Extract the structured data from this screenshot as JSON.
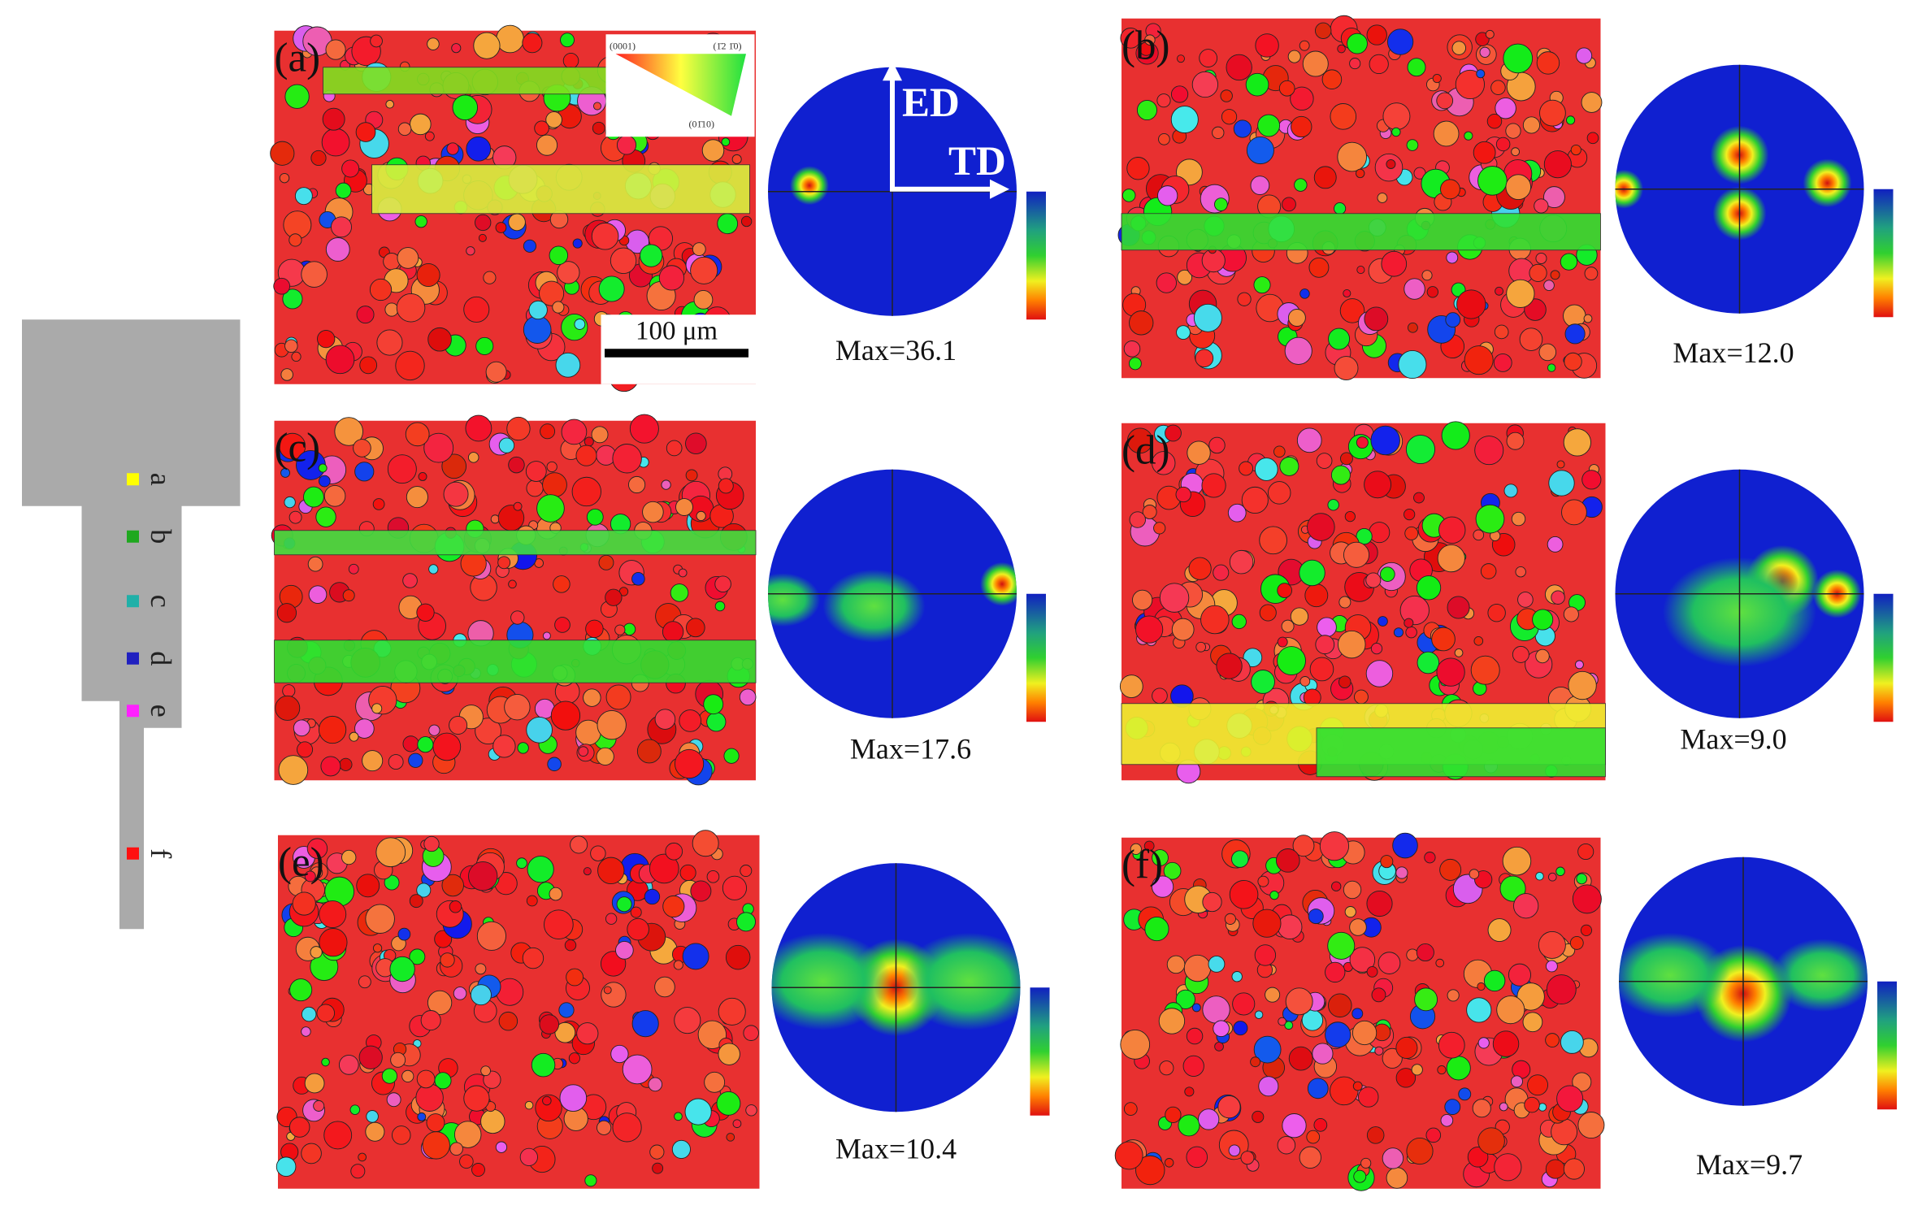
{
  "specimen": {
    "points": [
      {
        "label": "a",
        "color": "#ffff00"
      },
      {
        "label": "b",
        "color": "#1fa81f"
      },
      {
        "label": "c",
        "color": "#20b0a8"
      },
      {
        "label": "d",
        "color": "#2020c0"
      },
      {
        "label": "e",
        "color": "#ff20ff"
      },
      {
        "label": "f",
        "color": "#ff1010"
      }
    ]
  },
  "panels": [
    {
      "label": "(a)",
      "max": "Max=36.1"
    },
    {
      "label": "(b)",
      "max": "Max=12.0"
    },
    {
      "label": "(c)",
      "max": "Max=17.6"
    },
    {
      "label": "(d)",
      "max": "Max=9.0"
    },
    {
      "label": "(e)",
      "max": "Max=10.4"
    },
    {
      "label": "(f)",
      "max": "Max=9.7"
    }
  ],
  "directions": {
    "ed": "ED",
    "td": "TD"
  },
  "scale_bar": "100 μm",
  "ipf_key": [
    "(0001)",
    "(1̄2 1̄0)",
    "(01̄10)"
  ]
}
